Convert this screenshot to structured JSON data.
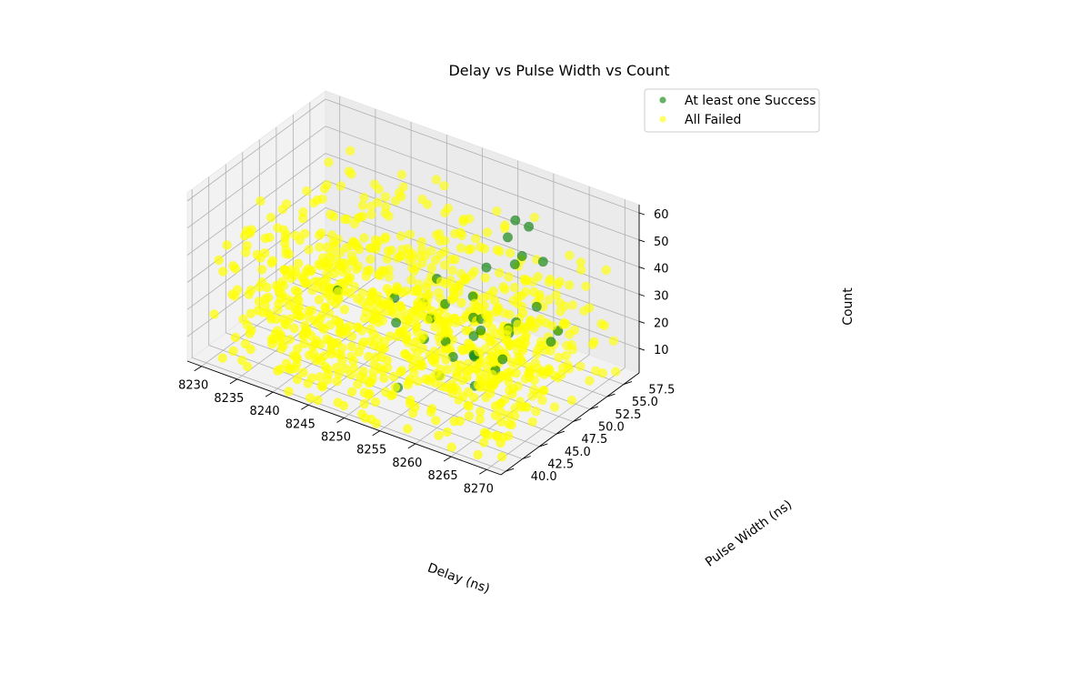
{
  "chart_data": {
    "type": "scatter",
    "title": "Delay vs Pulse Width vs Count",
    "xlabel": "Delay (ns)",
    "ylabel": "Pulse Width (ns)",
    "zlabel": "Count",
    "x_ticks": [
      8230,
      8235,
      8240,
      8245,
      8250,
      8255,
      8260,
      8265,
      8270
    ],
    "y_ticks": [
      "40.0",
      "42.5",
      "45.0",
      "47.5",
      "50.0",
      "52.5",
      "55.0",
      "57.5"
    ],
    "z_ticks": [
      10,
      20,
      30,
      40,
      50,
      60
    ],
    "xlim": [
      8228,
      8272
    ],
    "ylim": [
      39.3,
      59.8
    ],
    "zlim": [
      1,
      63
    ],
    "grid": true,
    "legend_position": "top-right",
    "series": [
      {
        "name": "At least one Success",
        "color": "#008000",
        "points": [
          [
            8262,
            52,
            62
          ],
          [
            8262,
            54,
            56
          ],
          [
            8260,
            53,
            52
          ],
          [
            8262,
            53,
            47
          ],
          [
            8261,
            53,
            43
          ],
          [
            8264,
            54,
            45
          ],
          [
            8257,
            53,
            38
          ],
          [
            8265,
            52,
            33
          ],
          [
            8268,
            52,
            27
          ],
          [
            8267,
            52,
            22
          ],
          [
            8261,
            48,
            32
          ],
          [
            8264,
            50,
            30
          ],
          [
            8258,
            50,
            26
          ],
          [
            8259,
            49,
            22
          ],
          [
            8251,
            52,
            30
          ],
          [
            8255,
            49,
            30
          ],
          [
            8257,
            51,
            31
          ],
          [
            8260,
            49,
            25
          ],
          [
            8261,
            47,
            20
          ],
          [
            8262,
            51,
            24
          ],
          [
            8263,
            50,
            25
          ],
          [
            8264,
            48,
            20
          ],
          [
            8252,
            50,
            20
          ],
          [
            8250,
            51,
            22
          ],
          [
            8246,
            51,
            20
          ],
          [
            8253,
            48,
            17
          ],
          [
            8258,
            47,
            17
          ],
          [
            8259,
            49,
            15
          ],
          [
            8263,
            48,
            15
          ],
          [
            8262,
            46,
            12
          ],
          [
            8257,
            46,
            11
          ],
          [
            8239,
            50,
            18
          ],
          [
            8255,
            42,
            12
          ],
          [
            8250,
            47,
            22
          ],
          [
            8256,
            48,
            19
          ]
        ]
      },
      {
        "name": "All Failed",
        "color": "#ffff00",
        "seed": 12345,
        "count": 950
      }
    ]
  }
}
